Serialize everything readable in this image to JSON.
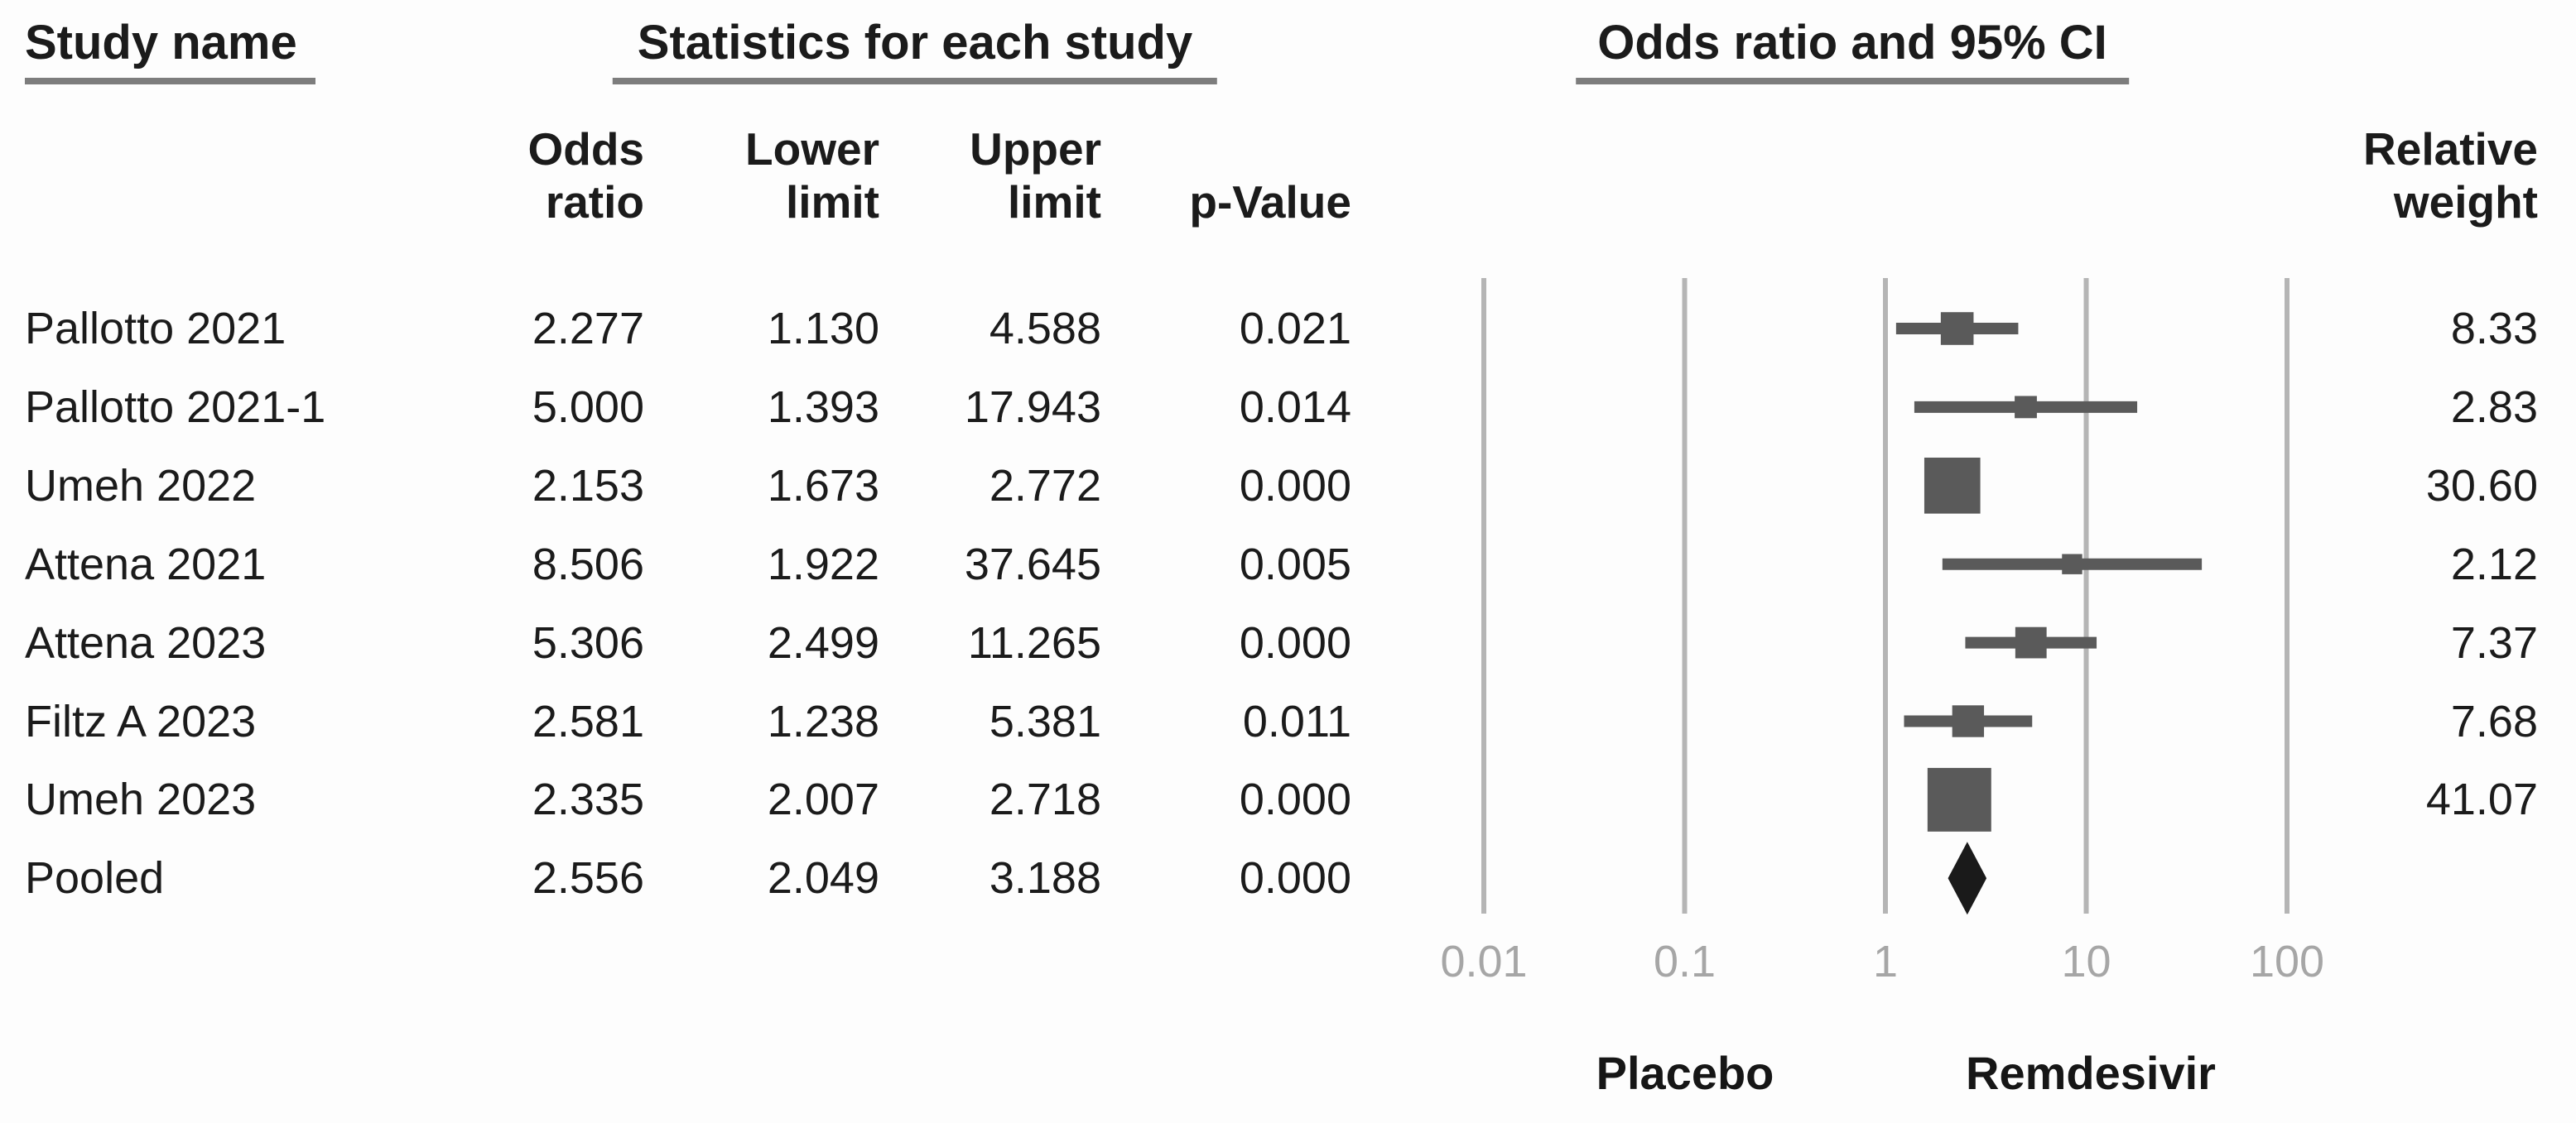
{
  "header": {
    "study_name": "Study name",
    "stats_title": "Statistics for each study",
    "plot_title": "Odds ratio and 95% CI",
    "columns": {
      "odds_ratio": [
        "Odds",
        "ratio"
      ],
      "lower": [
        "Lower",
        "limit"
      ],
      "upper": [
        "Upper",
        "limit"
      ],
      "p_value": "p-Value",
      "weight": [
        "Relative",
        "weight"
      ]
    }
  },
  "group_labels": {
    "left": "Placebo",
    "right": "Remdesivir"
  },
  "colors": {
    "text": "#1b1b1b",
    "marker": "#5a5a5a",
    "whisker": "#5a5a5a",
    "diamond": "#1a1a1a",
    "gridline": "#b5b5b5",
    "tick_label": "#a6a6a6",
    "underline": "#7d7d7d"
  },
  "chart_data": {
    "type": "forest",
    "title": "Odds ratio and 95% CI",
    "x_scale": "log",
    "x_range": [
      0.01,
      100
    ],
    "x_ticks": [
      "0.01",
      "0.1",
      "1",
      "10",
      "100"
    ],
    "grid": "vertical-decades",
    "effect_label_left": "Placebo",
    "effect_label_right": "Remdesivir",
    "studies": [
      {
        "name": "Pallotto 2021",
        "odds_ratio": "2.277",
        "lower": "1.130",
        "upper": "4.588",
        "p_value": "0.021",
        "weight": "8.33",
        "pooled": false
      },
      {
        "name": "Pallotto 2021-1",
        "odds_ratio": "5.000",
        "lower": "1.393",
        "upper": "17.943",
        "p_value": "0.014",
        "weight": "2.83",
        "pooled": false
      },
      {
        "name": "Umeh 2022",
        "odds_ratio": "2.153",
        "lower": "1.673",
        "upper": "2.772",
        "p_value": "0.000",
        "weight": "30.60",
        "pooled": false
      },
      {
        "name": "Attena 2021",
        "odds_ratio": "8.506",
        "lower": "1.922",
        "upper": "37.645",
        "p_value": "0.005",
        "weight": "2.12",
        "pooled": false
      },
      {
        "name": "Attena 2023",
        "odds_ratio": "5.306",
        "lower": "2.499",
        "upper": "11.265",
        "p_value": "0.000",
        "weight": "7.37",
        "pooled": false
      },
      {
        "name": "Filtz A 2023",
        "odds_ratio": "2.581",
        "lower": "1.238",
        "upper": "5.381",
        "p_value": "0.011",
        "weight": "7.68",
        "pooled": false
      },
      {
        "name": "Umeh 2023",
        "odds_ratio": "2.335",
        "lower": "2.007",
        "upper": "2.718",
        "p_value": "0.000",
        "weight": "41.07",
        "pooled": false
      },
      {
        "name": "Pooled",
        "odds_ratio": "2.556",
        "lower": "2.049",
        "upper": "3.188",
        "p_value": "0.000",
        "weight": "",
        "pooled": true
      }
    ]
  }
}
